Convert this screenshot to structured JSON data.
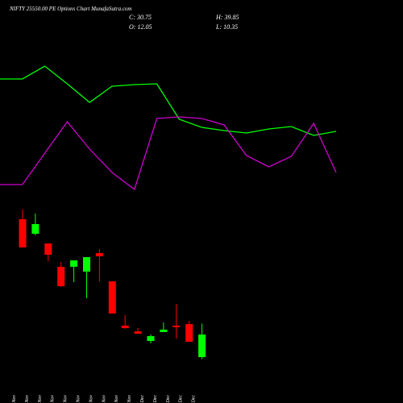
{
  "chart_data": [
    {
      "type": "line",
      "title": "NIFTY 25550.00 PE Options Chart MunafaSutra.com",
      "ylim": [
        0,
        100
      ],
      "series": [
        {
          "color": "#00ff00",
          "values": [
            60.8,
            60.8,
            67.2,
            58.4,
            49.2,
            57.2,
            58,
            58.4,
            40.8,
            36.8,
            35.2,
            34,
            36,
            37.2,
            32.8,
            34.8
          ]
        },
        {
          "color": "#cc00cc",
          "values": [
            8.4,
            8.4,
            24,
            39.6,
            26,
            14.4,
            6,
            41.2,
            42,
            41.2,
            38,
            22.8,
            17.2,
            22.4,
            38.8,
            14.4
          ]
        }
      ]
    },
    {
      "type": "candlestick",
      "info": [
        "C: 30.75",
        "H: 39.85",
        "O: 12.05",
        "L: 10.35"
      ],
      "ylim": [
        7.4,
        141
      ],
      "up_color": "#00ff00",
      "down_color": "#ff0000",
      "categories": [
        "17 Nov",
        "18 Nov",
        "19 Nov",
        "20 Nov",
        "21 Nov",
        "24 Nov",
        "25 Nov",
        "26 Nov",
        "27 Nov",
        "28 Nov",
        "01 Dec",
        "02 Dec",
        "03 Dec",
        "04 Dec",
        "08 Dec"
      ],
      "open": [
        126.3,
        114.3,
        106.2,
        86.9,
        86.9,
        82.9,
        98.2,
        74.8,
        38.1,
        33.4,
        25.4,
        32.8,
        38.1,
        39.4,
        12.05
      ],
      "high": [
        134.3,
        131.0,
        106.2,
        90.9,
        92.2,
        94.9,
        101.6,
        74.8,
        46.8,
        36.1,
        30.8,
        40.8,
        56.1,
        42.1,
        39.85
      ],
      "low": [
        102.9,
        112.9,
        91.5,
        70.2,
        74.2,
        60.8,
        74.8,
        48.1,
        35.4,
        31.4,
        23.4,
        32.8,
        27.4,
        24.7,
        10.35
      ],
      "close": [
        102.9,
        122.3,
        96.9,
        70.8,
        92.2,
        94.9,
        95.6,
        48.1,
        36.1,
        31.4,
        29.4,
        34.8,
        36.8,
        24.7,
        30.75
      ]
    }
  ]
}
